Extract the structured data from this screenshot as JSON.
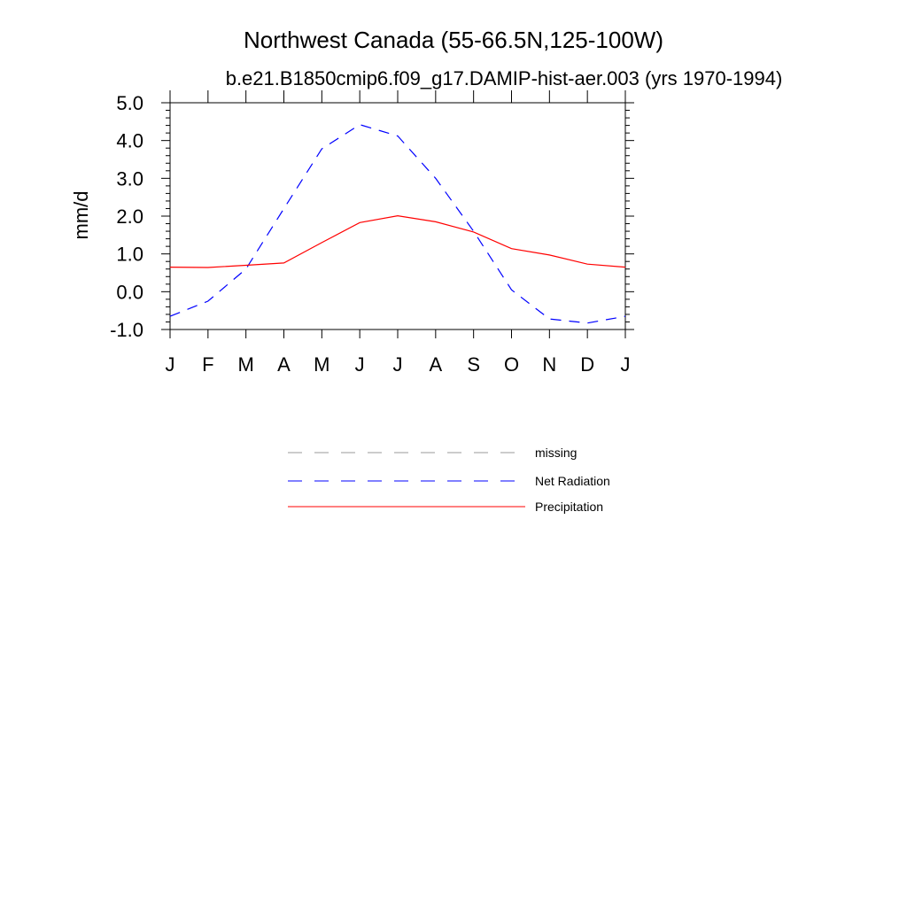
{
  "chart_data": {
    "type": "line",
    "title": "Northwest Canada (55-66.5N,125-100W)",
    "subtitle": "b.e21.B1850cmip6.f09_g17.DAMIP-hist-aer.003 (yrs 1970-1994)",
    "xlabel": "",
    "ylabel": "mm/d",
    "categories": [
      "J",
      "F",
      "M",
      "A",
      "M",
      "J",
      "J",
      "A",
      "S",
      "O",
      "N",
      "D",
      "J"
    ],
    "ylim": [
      -1.0,
      5.0
    ],
    "yticks": [
      "-1.0",
      "0.0",
      "1.0",
      "2.0",
      "3.0",
      "4.0",
      "5.0"
    ],
    "ytick_values": [
      -1.0,
      0.0,
      1.0,
      2.0,
      3.0,
      4.0,
      5.0
    ],
    "grid": false,
    "legend_position": "bottom",
    "series": [
      {
        "name": "Net Radiation",
        "color": "#0000ff",
        "style": "dashed",
        "values": [
          -0.65,
          -0.25,
          0.6,
          2.2,
          3.78,
          4.42,
          4.12,
          3.0,
          1.6,
          0.05,
          -0.72,
          -0.83,
          -0.65
        ]
      },
      {
        "name": "Precipitation",
        "color": "#ff0000",
        "style": "solid",
        "values": [
          0.65,
          0.64,
          0.7,
          0.76,
          1.3,
          1.83,
          2.01,
          1.85,
          1.58,
          1.14,
          0.97,
          0.73,
          0.65
        ]
      }
    ],
    "legend": [
      {
        "name": "missing",
        "color": "#999999",
        "style": "dashed"
      },
      {
        "name": "Net Radiation",
        "color": "#0000ff",
        "style": "dashed"
      },
      {
        "name": "Precipitation",
        "color": "#ff0000",
        "style": "solid"
      }
    ]
  }
}
